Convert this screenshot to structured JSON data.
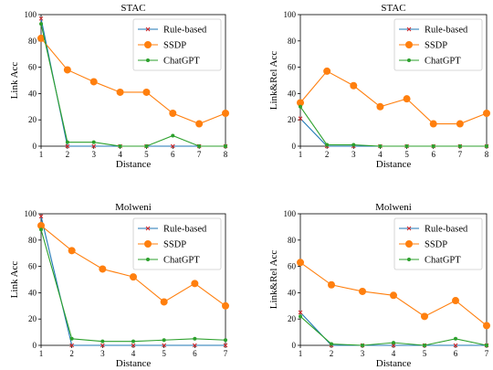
{
  "colors": {
    "rule_based": "#1f77b4",
    "rule_based_marker": "#d62728",
    "ssdp": "#ff7f0e",
    "chatgpt": "#2ca02c"
  },
  "chart_data": [
    {
      "type": "line",
      "title": "STAC",
      "xlabel": "Distance",
      "ylabel": "Link Acc",
      "xlim": [
        1,
        8
      ],
      "ylim": [
        0,
        100
      ],
      "xticks": [
        1,
        2,
        3,
        4,
        5,
        6,
        7,
        8
      ],
      "yticks": [
        0,
        20,
        40,
        60,
        80,
        100
      ],
      "legend": "top-right",
      "x": [
        1,
        2,
        3,
        4,
        5,
        6,
        7,
        8
      ],
      "series": [
        {
          "name": "Rule-based",
          "color": "#1f77b4",
          "marker_color": "#d62728",
          "marker": "x",
          "values": [
            97,
            0,
            0,
            0,
            0,
            0,
            0,
            0
          ]
        },
        {
          "name": "SSDP",
          "color": "#ff7f0e",
          "marker": "o",
          "values": [
            82,
            58,
            49,
            41,
            41,
            25,
            17,
            25
          ]
        },
        {
          "name": "ChatGPT",
          "color": "#2ca02c",
          "marker": "o-small",
          "values": [
            93,
            3,
            3,
            0,
            0,
            8,
            0,
            0
          ]
        }
      ]
    },
    {
      "type": "line",
      "title": "STAC",
      "xlabel": "Distance",
      "ylabel": "Link&Rel Acc",
      "xlim": [
        1,
        8
      ],
      "ylim": [
        0,
        100
      ],
      "xticks": [
        1,
        2,
        3,
        4,
        5,
        6,
        7,
        8
      ],
      "yticks": [
        0,
        20,
        40,
        60,
        80,
        100
      ],
      "legend": "top-right",
      "x": [
        1,
        2,
        3,
        4,
        5,
        6,
        7,
        8
      ],
      "series": [
        {
          "name": "Rule-based",
          "color": "#1f77b4",
          "marker_color": "#d62728",
          "marker": "x",
          "values": [
            21,
            0,
            0,
            0,
            0,
            0,
            0,
            0
          ]
        },
        {
          "name": "SSDP",
          "color": "#ff7f0e",
          "marker": "o",
          "values": [
            33,
            57,
            46,
            30,
            36,
            17,
            17,
            25
          ]
        },
        {
          "name": "ChatGPT",
          "color": "#2ca02c",
          "marker": "o-small",
          "values": [
            30,
            1,
            1,
            0,
            0,
            0,
            0,
            0
          ]
        }
      ]
    },
    {
      "type": "line",
      "title": "Molweni",
      "xlabel": "Distance",
      "ylabel": "Link Acc",
      "xlim": [
        1,
        7
      ],
      "ylim": [
        0,
        100
      ],
      "xticks": [
        1,
        2,
        3,
        4,
        5,
        6,
        7
      ],
      "yticks": [
        0,
        20,
        40,
        60,
        80,
        100
      ],
      "legend": "top-right",
      "x": [
        1,
        2,
        3,
        4,
        5,
        6,
        7
      ],
      "series": [
        {
          "name": "Rule-based",
          "color": "#1f77b4",
          "marker_color": "#d62728",
          "marker": "x",
          "values": [
            98,
            0,
            0,
            0,
            0,
            0,
            0
          ]
        },
        {
          "name": "SSDP",
          "color": "#ff7f0e",
          "marker": "o",
          "values": [
            91,
            72,
            58,
            52,
            33,
            47,
            30
          ]
        },
        {
          "name": "ChatGPT",
          "color": "#2ca02c",
          "marker": "o-small",
          "values": [
            88,
            5,
            3,
            3,
            4,
            5,
            4
          ]
        }
      ]
    },
    {
      "type": "line",
      "title": "Molweni",
      "xlabel": "Distance",
      "ylabel": "Link&Rel Acc",
      "xlim": [
        1,
        7
      ],
      "ylim": [
        0,
        100
      ],
      "xticks": [
        1,
        2,
        3,
        4,
        5,
        6,
        7
      ],
      "yticks": [
        0,
        20,
        40,
        60,
        80,
        100
      ],
      "legend": "top-right",
      "x": [
        1,
        2,
        3,
        4,
        5,
        6,
        7
      ],
      "series": [
        {
          "name": "Rule-based",
          "color": "#1f77b4",
          "marker_color": "#d62728",
          "marker": "x",
          "values": [
            25,
            0,
            0,
            0,
            0,
            0,
            0
          ]
        },
        {
          "name": "SSDP",
          "color": "#ff7f0e",
          "marker": "o",
          "values": [
            63,
            46,
            41,
            38,
            22,
            34,
            15
          ]
        },
        {
          "name": "ChatGPT",
          "color": "#2ca02c",
          "marker": "o-small",
          "values": [
            22,
            1,
            0,
            2,
            0,
            5,
            0
          ]
        }
      ]
    }
  ]
}
